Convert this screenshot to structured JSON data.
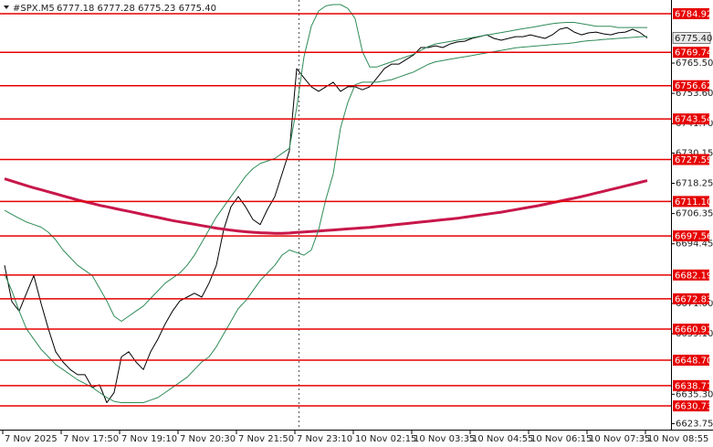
{
  "chart_data": {
    "type": "line",
    "header": {
      "symbol": "#SPX.M5",
      "quote": "6777.18 6777.28 6775.23 6775.40"
    },
    "categories": [
      "7 Nov 2025",
      null,
      null,
      null,
      null,
      null,
      null,
      null,
      "7 Nov 17:50",
      null,
      null,
      null,
      null,
      null,
      null,
      null,
      "7 Nov 19:10",
      null,
      null,
      null,
      null,
      null,
      null,
      null,
      "7 Nov 20:30",
      null,
      null,
      null,
      null,
      null,
      null,
      null,
      "7 Nov 21:50",
      null,
      null,
      null,
      null,
      null,
      null,
      null,
      "7 Nov 23:10",
      null,
      null,
      null,
      null,
      null,
      null,
      null,
      "10 Nov 02:15",
      null,
      null,
      null,
      null,
      null,
      null,
      null,
      "10 Nov 03:35",
      null,
      null,
      null,
      null,
      null,
      null,
      null,
      "10 Nov 04:55",
      null,
      null,
      null,
      null,
      null,
      null,
      null,
      "10 Nov 06:15",
      null,
      null,
      null,
      null,
      null,
      null,
      null,
      "10 Nov 07:35",
      null,
      null,
      null,
      null,
      null,
      null,
      null,
      "10 Nov 08:55"
    ],
    "series": [
      {
        "color": "#000000",
        "values": [
          6686,
          6671.7,
          6668,
          6675,
          6682,
          6671,
          6661,
          6652,
          6648,
          6645,
          6643,
          6643,
          6638,
          6639,
          6632,
          6636,
          6650,
          6652,
          6648,
          6645,
          6652,
          6657,
          6663,
          6668,
          6672,
          6673.5,
          6675,
          6673.5,
          6679,
          6686,
          6700,
          6709,
          6713,
          6709,
          6704,
          6702,
          6708,
          6713,
          6722,
          6731,
          6763.3,
          6759.7,
          6756.2,
          6754.4,
          6756.2,
          6758,
          6754.4,
          6756.2,
          6756.2,
          6755,
          6756.2,
          6759.7,
          6763.3,
          6765.1,
          6765.1,
          6766.9,
          6768.7,
          6771.6,
          6771.6,
          6772.3,
          6771.6,
          6773,
          6773.8,
          6774.1,
          6775.2,
          6775.9,
          6776.6,
          6775.2,
          6774.5,
          6775.2,
          6775.9,
          6775.9,
          6776.6,
          6775.9,
          6775.2,
          6776.6,
          6778.8,
          6779.5,
          6777.7,
          6776.6,
          6777.4,
          6777.7,
          6777,
          6776.6,
          6777.4,
          6777.7,
          6778.8,
          6777.5,
          6775.4
        ]
      },
      {
        "color": "#c8174a",
        "values": [
          6720,
          6719.1,
          6718.2,
          6717.3,
          6716.5,
          6715.7,
          6714.9,
          6714.1,
          6713.3,
          6712.5,
          6711.7,
          6711,
          6710.3,
          6709.6,
          6709,
          6708.4,
          6707.8,
          6707.2,
          6706.6,
          6706,
          6705.4,
          6704.8,
          6704.2,
          6703.6,
          6703.1,
          6702.6,
          6702.1,
          6701.6,
          6701.1,
          6700.6,
          6700.2,
          6699.8,
          6699.5,
          6699.2,
          6699,
          6698.8,
          6698.7,
          6698.6,
          6698.6,
          6698.7,
          6698.9,
          6699.1,
          6699.3,
          6699.5,
          6699.7,
          6699.9,
          6700.1,
          6700.3,
          6700.5,
          6700.7,
          6700.9,
          6701.2,
          6701.5,
          6701.8,
          6702.1,
          6702.4,
          6702.7,
          6703,
          6703.3,
          6703.6,
          6703.9,
          6704.2,
          6704.5,
          6704.9,
          6705.3,
          6705.7,
          6706.1,
          6706.5,
          6706.9,
          6707.4,
          6707.9,
          6708.4,
          6708.9,
          6709.4,
          6710,
          6710.6,
          6711.2,
          6711.8,
          6712.4,
          6713,
          6713.7,
          6714.4,
          6715.1,
          6715.8,
          6716.5,
          6717.2,
          6717.9,
          6718.6,
          6719.3
        ]
      },
      {
        "color": "#2e8b57",
        "values": [
          6707.6,
          6706,
          6704.5,
          6703,
          6702,
          6701,
          6699,
          6696,
          6692,
          6689,
          6686,
          6684,
          6682,
          6677,
          6672,
          6666,
          6664,
          6666,
          6668,
          6670,
          6673,
          6676,
          6679,
          6681,
          6683,
          6686,
          6690,
          6695,
          6700,
          6705,
          6709,
          6713,
          6717,
          6721,
          6724,
          6726,
          6727,
          6728,
          6730,
          6732,
          6748,
          6768,
          6780,
          6786,
          6788,
          6788.5,
          6788.5,
          6787,
          6783,
          6770,
          6764,
          6764,
          6765,
          6766,
          6767,
          6768,
          6769,
          6770.5,
          6772,
          6773,
          6773.5,
          6774,
          6774.5,
          6775,
          6775.5,
          6776,
          6776.5,
          6777,
          6777.5,
          6778,
          6778.5,
          6779,
          6779.5,
          6780,
          6780.5,
          6781,
          6781.3,
          6781.5,
          6781.5,
          6781,
          6780.5,
          6780,
          6780,
          6780,
          6779.5,
          6779.5,
          6779.5,
          6779.5,
          6779.5
        ]
      },
      {
        "color": "#2e8b57",
        "values": [
          6682.5,
          6676,
          6668,
          6661,
          6657,
          6653,
          6650,
          6647,
          6645,
          6643,
          6641,
          6639.5,
          6638,
          6636,
          6634,
          6632.5,
          6632,
          6632,
          6632,
          6632,
          6633,
          6634,
          6636,
          6638,
          6640,
          6642,
          6645,
          6648,
          6650,
          6654,
          6659,
          6664,
          6669,
          6672,
          6676,
          6680,
          6683,
          6686,
          6690,
          6692,
          6691,
          6690,
          6692,
          6700,
          6712,
          6722,
          6740,
          6750,
          6757,
          6758,
          6758,
          6758,
          6758.5,
          6759,
          6760,
          6761,
          6762,
          6763.5,
          6765,
          6766,
          6766.5,
          6767,
          6767.5,
          6768,
          6768.5,
          6769,
          6769.5,
          6770,
          6770.5,
          6771,
          6771.5,
          6771.8,
          6772,
          6772.3,
          6772.5,
          6772.8,
          6773,
          6773.2,
          6773.5,
          6774,
          6774.3,
          6774.5,
          6774.8,
          6775,
          6775.2,
          6775.4,
          6775.6,
          6775.8,
          6776
        ]
      }
    ],
    "ylim": [
      6621.4,
      6790.3
    ],
    "yticks": [
      {
        "value": 6765.5,
        "label": "6765.50"
      },
      {
        "value": 6753.6,
        "label": "6753.60"
      },
      {
        "value": 6741.7,
        "label": "6741.70"
      },
      6730.15,
      6718.25,
      6706.35,
      6694.45,
      {
        "value": 6671,
        "label": "6671.00"
      },
      {
        "value": 6659.1,
        "label": "6659.10"
      },
      {
        "value": 6635.3,
        "label": "6635.30"
      },
      6623.75
    ],
    "levels": [
      6784.92,
      6769.74,
      6756.62,
      6743.54,
      6727.59,
      {
        "value": 6711.1,
        "label": "6711.10"
      },
      6697.56,
      6682.19,
      6672.83,
      6660.91,
      {
        "value": 6648.7,
        "label": "6648.70"
      },
      6638.71,
      6630.73
    ],
    "level_color": "#e60000",
    "last": {
      "value": 6775.4,
      "label": "6775.40"
    }
  }
}
